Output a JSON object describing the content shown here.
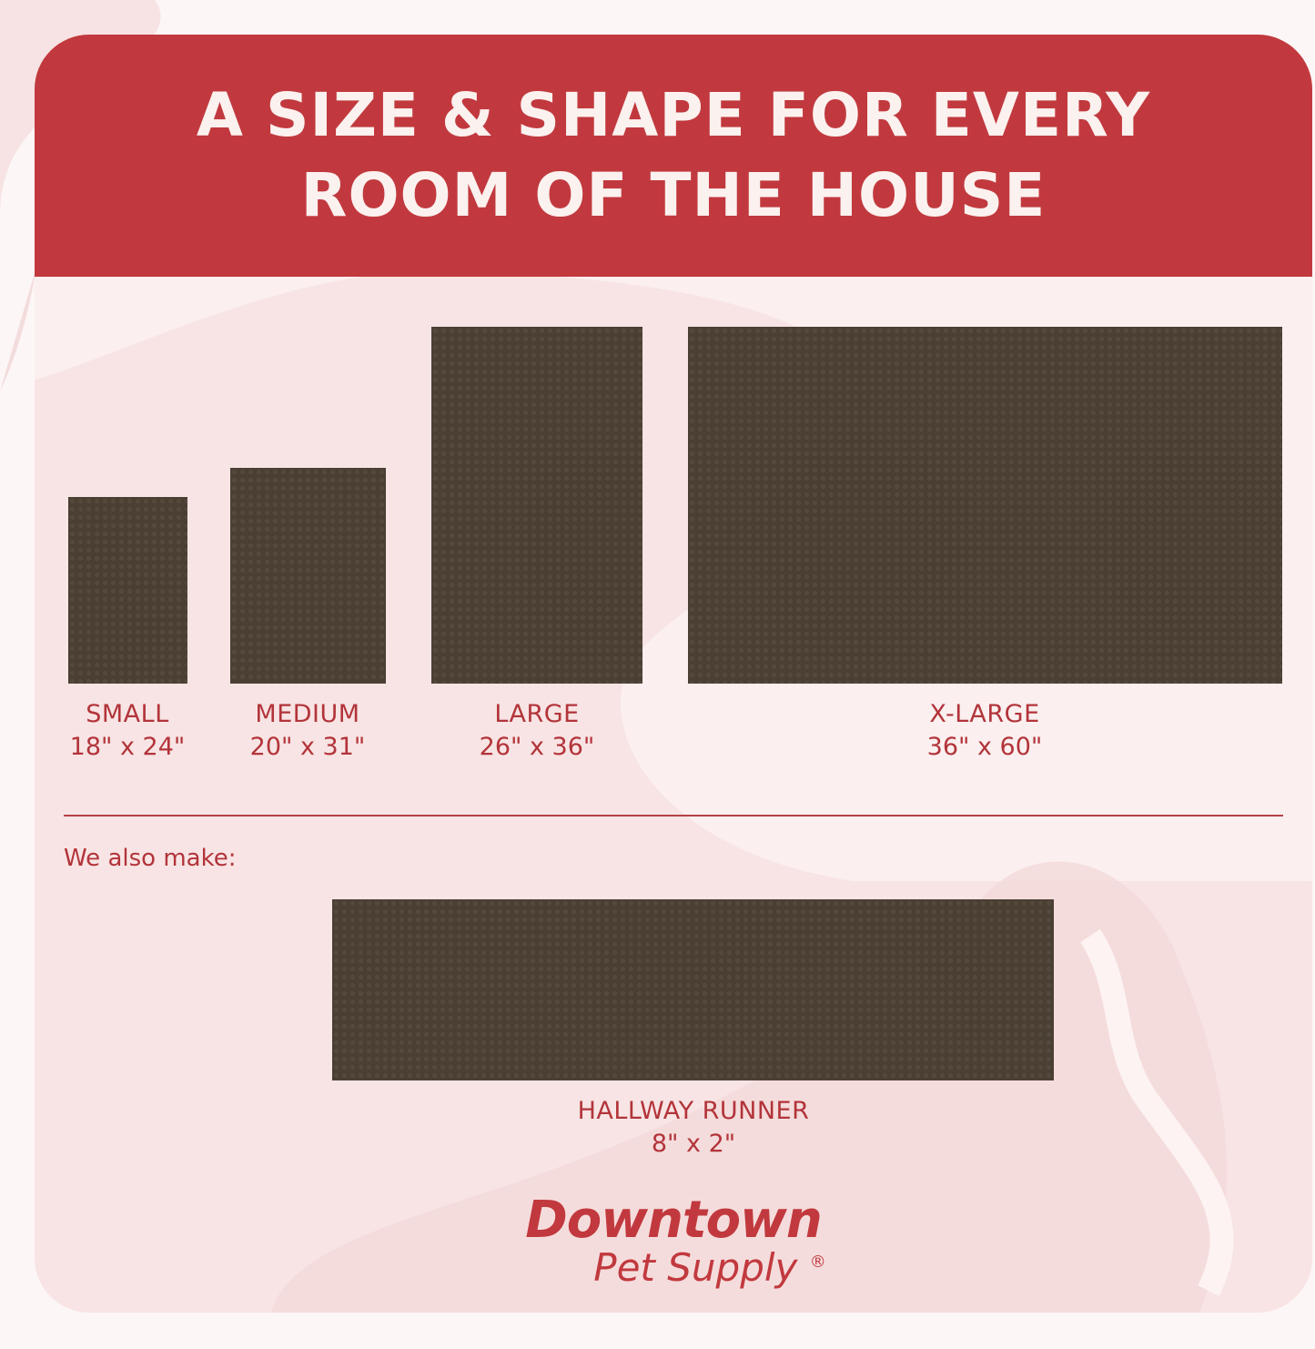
{
  "header": {
    "title_line1": "A SIZE & SHAPE FOR EVERY",
    "title_line2": "ROOM OF THE HOUSE"
  },
  "sizes": [
    {
      "name": "SMALL",
      "dims": "18\" x 24\""
    },
    {
      "name": "MEDIUM",
      "dims": "20\" x 31\""
    },
    {
      "name": "LARGE",
      "dims": "26\" x 36\""
    },
    {
      "name": "X-LARGE",
      "dims": "36\" x 60\""
    }
  ],
  "also": {
    "label": "We also make:",
    "item": {
      "name": "HALLWAY RUNNER",
      "dims": "8\" x 2\""
    }
  },
  "logo": {
    "line1": "Downtown",
    "line2": "Pet Supply",
    "mark": "®"
  },
  "colors": {
    "brand_red": "#c1393e",
    "mat": "#4a3f33",
    "background": "#faecec"
  }
}
